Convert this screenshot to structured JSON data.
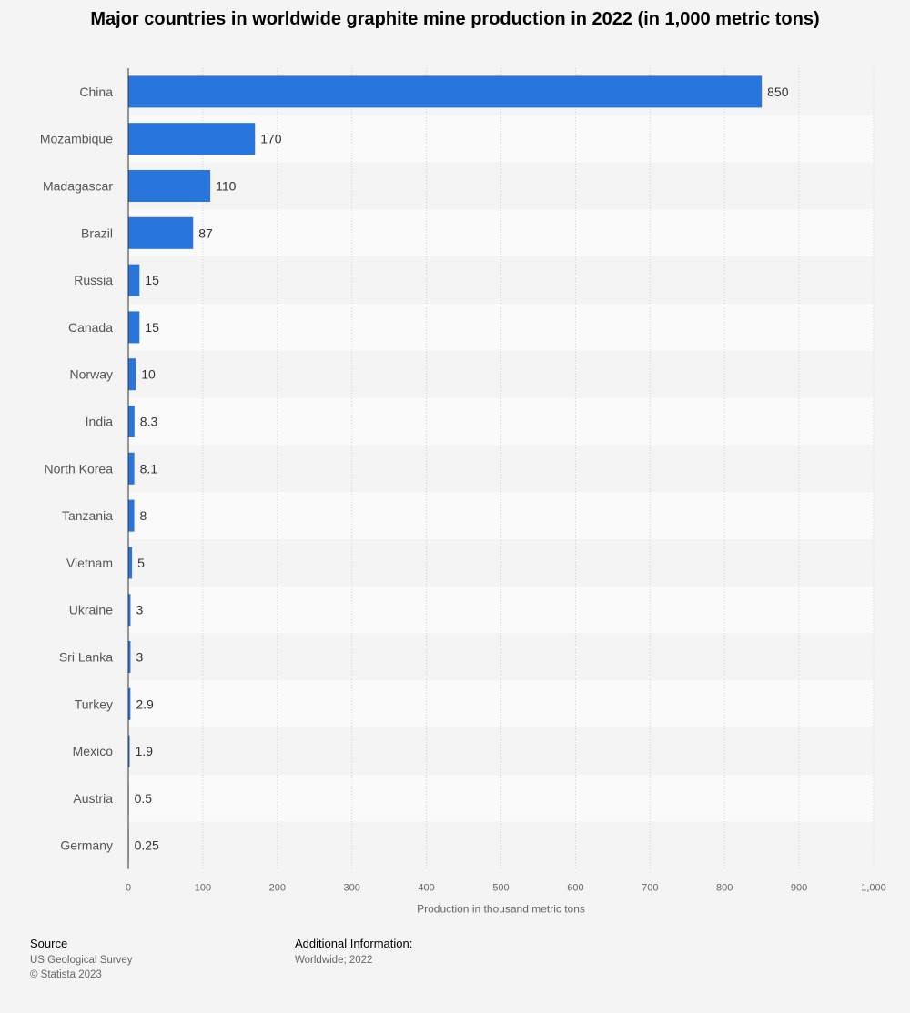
{
  "chart_data": {
    "type": "bar",
    "orientation": "horizontal",
    "title": "Major countries in worldwide graphite mine production in 2022 (in 1,000 metric tons)",
    "xlabel": "Production in thousand metric tons",
    "ylabel": "",
    "xlim": [
      0,
      1000
    ],
    "xticks": [
      "0",
      "100",
      "200",
      "300",
      "400",
      "500",
      "600",
      "700",
      "800",
      "900",
      "1,000"
    ],
    "categories": [
      "China",
      "Mozambique",
      "Madagascar",
      "Brazil",
      "Russia",
      "Canada",
      "Norway",
      "India",
      "North Korea",
      "Tanzania",
      "Vietnam",
      "Ukraine",
      "Sri Lanka",
      "Turkey",
      "Mexico",
      "Austria",
      "Germany"
    ],
    "values": [
      850,
      170,
      110,
      87,
      15,
      15,
      10,
      8.3,
      8.1,
      8,
      5,
      3,
      3,
      2.9,
      1.9,
      0.5,
      0.25
    ],
    "value_labels": [
      "850",
      "170",
      "110",
      "87",
      "15",
      "15",
      "10",
      "8.3",
      "8.1",
      "8",
      "5",
      "3",
      "3",
      "2.9",
      "1.9",
      "0.5",
      "0.25"
    ],
    "bar_color": "#2876dd",
    "grid": true
  },
  "footer": {
    "source_heading": "Source",
    "source_lines": [
      "US Geological Survey",
      "© Statista 2023"
    ],
    "info_heading": "Additional Information:",
    "info_lines": [
      "Worldwide; 2022"
    ]
  }
}
